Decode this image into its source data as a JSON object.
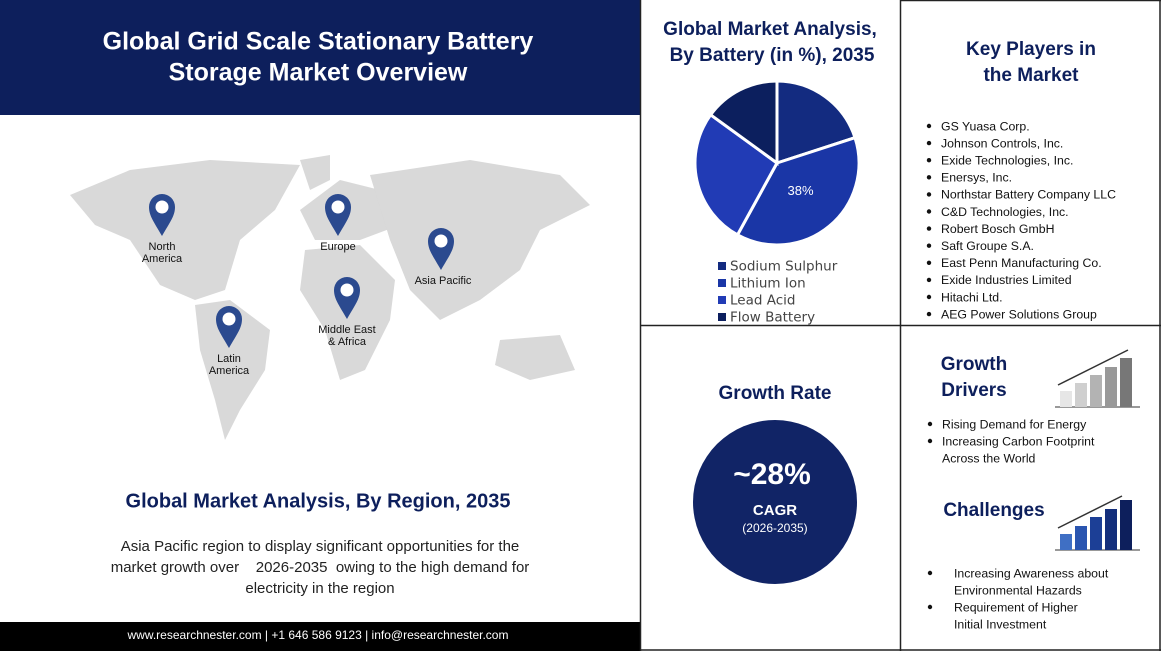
{
  "header": {
    "title": [
      "Global Grid Scale Stationary Battery",
      "Storage Market Overview"
    ]
  },
  "map": {
    "regions": [
      [
        "North",
        "America"
      ],
      [
        "Europe"
      ],
      [
        "Asia Pacific"
      ],
      [
        "Latin",
        "America"
      ],
      [
        "Middle East",
        "& Africa"
      ]
    ]
  },
  "region_analysis": {
    "title": "Global Market Analysis, By Region, 2035",
    "text": [
      "Asia Pacific region to display significant opportunities for the",
      "market growth over    2026-2035  owing to the high demand for",
      "electricity in the region"
    ]
  },
  "footer": "www.researchnester.com  |  +1 646 586 9123  |  info@researchnester.com",
  "chart_data": {
    "type": "pie",
    "title": [
      "Global Market Analysis,",
      "By Battery (in %), 2035"
    ],
    "categories": [
      "Sodium Sulphur",
      "Lithium Ion",
      "Lead Acid",
      "Flow Battery"
    ],
    "values": [
      20,
      38,
      27,
      15
    ],
    "value_labels": [
      null,
      "38%",
      null,
      null
    ],
    "colors": [
      "#132b80",
      "#1a36a6",
      "#213bb5",
      "#0c1f5e"
    ]
  },
  "key_players": {
    "title": [
      "Key Players in",
      "the Market"
    ],
    "items": [
      "GS Yuasa Corp.",
      "Johnson Controls, Inc.",
      "Exide Technologies,  Inc.",
      "Enersys, Inc.",
      "Northstar Battery Company LLC",
      "C&D Technologies, Inc.",
      "Robert Bosch GmbH",
      "Saft Groupe S.A.",
      "East Penn Manufacturing  Co.",
      "Exide Industries Limited",
      "Hitachi Ltd.",
      "AEG Power Solutions Group"
    ]
  },
  "growth_rate": {
    "title": "Growth Rate",
    "value": "~28%",
    "label": "CAGR",
    "period": "(2026-2035)"
  },
  "growth_drivers": {
    "title": [
      "Growth",
      "Drivers"
    ],
    "items": [
      [
        "Rising Demand for Energy"
      ],
      [
        "Increasing Carbon Footprint",
        "Across the World"
      ]
    ]
  },
  "challenges": {
    "title": "Challenges",
    "items": [
      [
        "Increasing Awareness about",
        "Environmental Hazards"
      ],
      [
        "Requirement of Higher",
        "Initial Investment"
      ]
    ]
  }
}
